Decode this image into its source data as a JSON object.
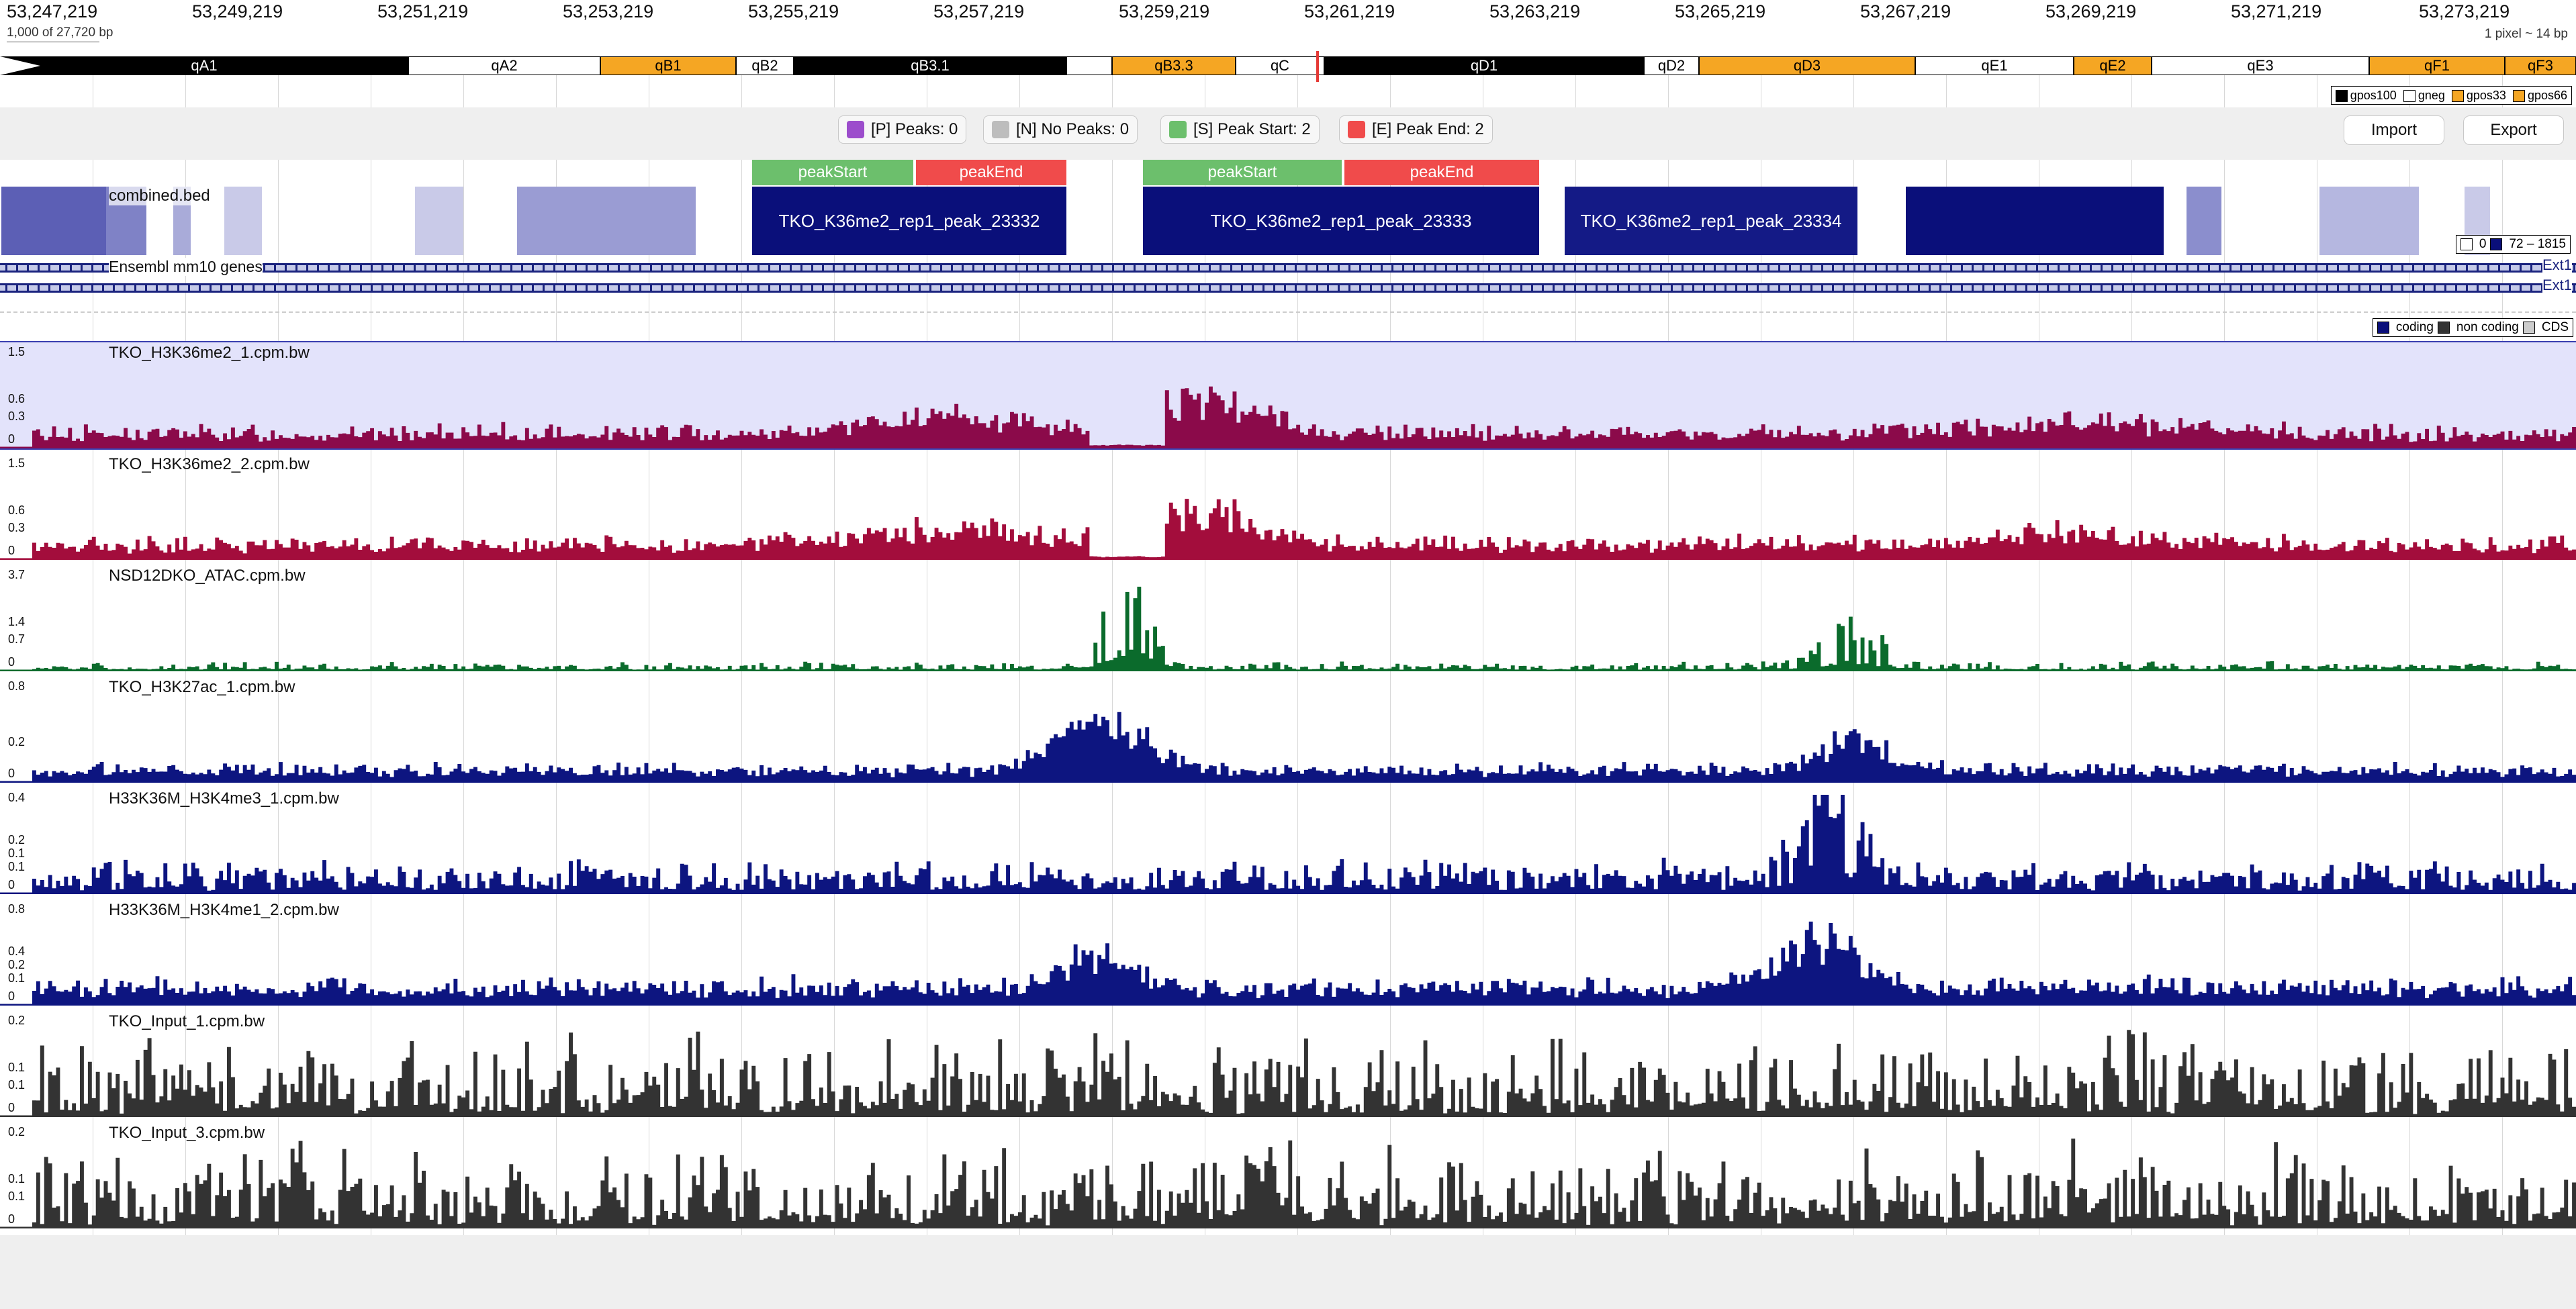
{
  "ruler": {
    "ticks": [
      "53,247,219",
      "53,249,219",
      "53,251,219",
      "53,253,219",
      "53,255,219",
      "53,257,219",
      "53,259,219",
      "53,261,219",
      "53,263,219",
      "53,265,219",
      "53,267,219",
      "53,269,219",
      "53,271,219",
      "53,273,219"
    ],
    "scale_text": "1,000 of 27,720 bp",
    "pixel_text": "1 pixel ~ 14 bp"
  },
  "ideogram": {
    "bands": [
      {
        "label": "qA1",
        "color": "black"
      },
      {
        "label": "qA2",
        "color": "white"
      },
      {
        "label": "qB1",
        "color": "orange"
      },
      {
        "label": "qB2",
        "color": "white"
      },
      {
        "label": "qB3.1",
        "color": "black"
      },
      {
        "label": "",
        "color": "white"
      },
      {
        "label": "qB3.3",
        "color": "orange"
      },
      {
        "label": "qC",
        "color": "white"
      },
      {
        "label": "qD1",
        "color": "black"
      },
      {
        "label": "qD2",
        "color": "white"
      },
      {
        "label": "qD3",
        "color": "orange"
      },
      {
        "label": "qE1",
        "color": "white"
      },
      {
        "label": "qE2",
        "color": "orange"
      },
      {
        "label": "qE3",
        "color": "white"
      },
      {
        "label": "qF1",
        "color": "orange"
      },
      {
        "label": "qF3",
        "color": "orange"
      }
    ],
    "legend": [
      "gpos100",
      "gneg",
      "gpos33",
      "gpos66"
    ]
  },
  "controls": {
    "peaks": "[P] Peaks: 0",
    "no_peaks": "[N] No Peaks: 0",
    "peak_start": "[S] Peak Start: 2",
    "peak_end": "[E] Peak End: 2",
    "import": "Import",
    "export": "Export",
    "colors": {
      "peaks": "#9c4dcc",
      "no_peaks": "#bdbdbd",
      "peak_start": "#6cbf6c",
      "peak_end": "#f04b4b"
    }
  },
  "markers": [
    {
      "label": "peakStart",
      "type": "start"
    },
    {
      "label": "peakEnd",
      "type": "end"
    },
    {
      "label": "peakStart",
      "type": "start"
    },
    {
      "label": "peakEnd",
      "type": "end"
    }
  ],
  "bed": {
    "name": "combined.bed",
    "peaks": [
      "TKO_K36me2_rep1_peak_23332",
      "TKO_K36me2_rep1_peak_23333",
      "TKO_K36me2_rep1_peak_23334"
    ],
    "legend_min": "0",
    "legend_range": "72 – 1815"
  },
  "genes": {
    "name": "Ensembl mm10 genes",
    "ext1": "Ext1",
    "ext2": "Ext1",
    "legend": [
      "coding",
      "non coding",
      "CDS"
    ]
  },
  "tracks": [
    {
      "name": "TKO_H3K36me2_1.cpm.bw",
      "color": "#8b0a4a",
      "yticks": [
        "1.5",
        "0.6",
        "0.3",
        "0"
      ],
      "selected": true
    },
    {
      "name": "TKO_H3K36me2_2.cpm.bw",
      "color": "#a30d3c",
      "yticks": [
        "1.5",
        "0.6",
        "0.3",
        "0"
      ],
      "selected": false
    },
    {
      "name": "NSD12DKO_ATAC.cpm.bw",
      "color": "#0b6b2c",
      "yticks": [
        "3.7",
        "1.4",
        "0.7",
        "0"
      ],
      "selected": false
    },
    {
      "name": "TKO_H3K27ac_1.cpm.bw",
      "color": "#0d1580",
      "yticks": [
        "0.8",
        "0.2",
        "0"
      ],
      "selected": false
    },
    {
      "name": "H33K36M_H3K4me3_1.cpm.bw",
      "color": "#0d1580",
      "yticks": [
        "0.4",
        "0.2",
        "0.1",
        "0.1",
        "0"
      ],
      "selected": false
    },
    {
      "name": "H33K36M_H3K4me1_2.cpm.bw",
      "color": "#0d1580",
      "yticks": [
        "0.8",
        "0.4",
        "0.2",
        "0.1",
        "0"
      ],
      "selected": false
    },
    {
      "name": "TKO_Input_1.cpm.bw",
      "color": "#333333",
      "yticks": [
        "0.2",
        "0.1",
        "0.1",
        "0"
      ],
      "selected": false
    },
    {
      "name": "TKO_Input_3.cpm.bw",
      "color": "#333333",
      "yticks": [
        "0.2",
        "0.1",
        "0.1",
        "0"
      ],
      "selected": false
    }
  ]
}
